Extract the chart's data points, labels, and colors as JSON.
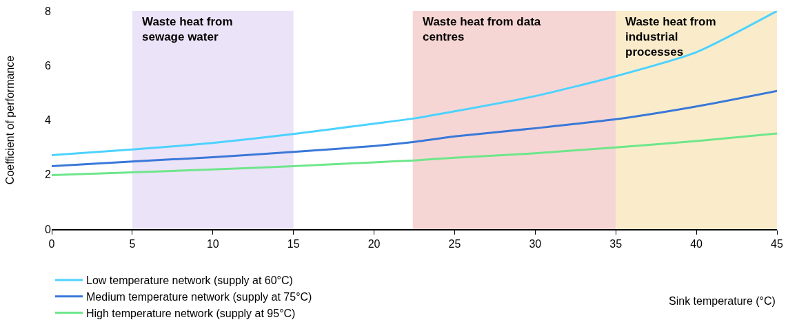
{
  "chart_data": {
    "type": "line",
    "xlabel": "Sink temperature (°C)",
    "ylabel": "Coefficient of performance",
    "x": [
      0,
      5,
      10,
      15,
      20,
      22.5,
      25,
      30,
      35,
      40,
      45
    ],
    "series": [
      {
        "name": "Low temperature network (supply at 60°C)",
        "color": "#4dd2ff",
        "values": [
          2.71,
          2.92,
          3.16,
          3.49,
          3.87,
          4.06,
          4.32,
          4.88,
          5.61,
          6.49,
          8.0
        ]
      },
      {
        "name": "Medium temperature network (supply at 75°C)",
        "color": "#3a78d8",
        "values": [
          2.31,
          2.48,
          2.64,
          2.83,
          3.05,
          3.2,
          3.4,
          3.7,
          4.03,
          4.5,
          5.07
        ]
      },
      {
        "name": "High temperature network (supply at 95°C)",
        "color": "#6ee68a",
        "values": [
          1.98,
          2.08,
          2.19,
          2.31,
          2.45,
          2.52,
          2.62,
          2.78,
          3.0,
          3.23,
          3.51
        ]
      }
    ],
    "bands": [
      {
        "axis": "x",
        "from": 5,
        "to": 15,
        "label": "Waste heat from\nsewage water",
        "color": "#ebe3f8"
      },
      {
        "axis": "x",
        "from": 22.4,
        "to": 35,
        "label": "Waste heat from data\ncentres",
        "color": "#f6d6d4"
      },
      {
        "axis": "x",
        "from": 35,
        "to": 45,
        "label": "Waste heat from\nindustrial\nprocesses",
        "color": "#faeccb"
      }
    ],
    "xlim": [
      0,
      45
    ],
    "xticks": [
      0,
      5,
      10,
      15,
      20,
      25,
      30,
      35,
      40,
      45
    ],
    "ylim": [
      0,
      8
    ],
    "yticks": [
      0,
      2,
      4,
      6,
      8
    ],
    "grid": false,
    "legend": "bottom left",
    "marker": "none",
    "line_style": "solid"
  }
}
